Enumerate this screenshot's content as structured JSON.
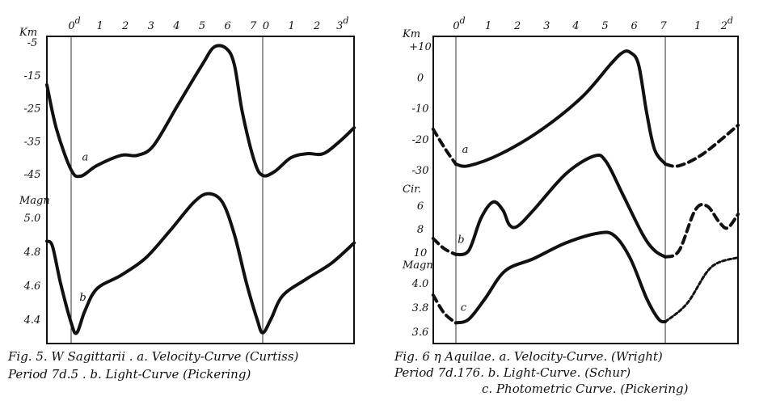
{
  "chart_data": [
    {
      "type": "line",
      "figure": "Fig. 5",
      "title": "W Sagittarii",
      "caption": [
        "Fig. 5. W Sagittarii . a. Velocity-Curve (Curtiss)",
        "Period 7d.5 . b. Light-Curve (Pickering)"
      ],
      "period_days": 7.5,
      "x_ticks": [
        {
          "day": 0,
          "label": "0",
          "sup": "d"
        },
        {
          "day": 1,
          "label": "1"
        },
        {
          "day": 2,
          "label": "2"
        },
        {
          "day": 3,
          "label": "3"
        },
        {
          "day": 4,
          "label": "4"
        },
        {
          "day": 5,
          "label": "5"
        },
        {
          "day": 6,
          "label": "6"
        },
        {
          "day": 7,
          "label": "7"
        },
        {
          "day": 7.5,
          "label": "0"
        },
        {
          "day": 8.5,
          "label": "1"
        },
        {
          "day": 9.5,
          "label": "2"
        },
        {
          "day": 10.5,
          "label": "3",
          "sup": "d"
        }
      ],
      "phase_lines_days": [
        0,
        7.5
      ],
      "axes": [
        {
          "id": "velocity",
          "label": "Km",
          "ticks": [
            {
              "v": -5,
              "label": "-5"
            },
            {
              "v": -15,
              "label": "-15"
            },
            {
              "v": -25,
              "label": "-25"
            },
            {
              "v": -35,
              "label": "-35"
            },
            {
              "v": -45,
              "label": "-45"
            }
          ]
        },
        {
          "id": "magnitude",
          "label": "Magn",
          "ticks": [
            {
              "v": 5.0,
              "label": "5.0"
            },
            {
              "v": 4.8,
              "label": "4.8"
            },
            {
              "v": 4.6,
              "label": "4.6"
            },
            {
              "v": 4.4,
              "label": "4.4"
            }
          ]
        }
      ],
      "series": [
        {
          "name": "a",
          "label": "a",
          "desc": "Velocity-Curve (Curtiss)",
          "axis": "velocity",
          "label_at": [
            0.3,
            -41
          ],
          "segments": [
            {
              "style": "solid",
              "points": [
                [
                  -0.95,
                  -18.0
                ],
                [
                  -0.57,
                  -31.5
                ],
                [
                  0,
                  -43.8
                ],
                [
                  0.38,
                  -45.7
                ],
                [
                  1.01,
                  -42.5
                ],
                [
                  1.96,
                  -39.4
                ],
                [
                  2.59,
                  -39.4
                ],
                [
                  3.23,
                  -36.4
                ],
                [
                  4.18,
                  -24.1
                ],
                [
                  5.13,
                  -11.9
                ],
                [
                  5.6,
                  -6.5
                ],
                [
                  6.08,
                  -7.0
                ],
                [
                  6.39,
                  -11.9
                ],
                [
                  6.71,
                  -26.6
                ],
                [
                  7.18,
                  -41.3
                ],
                [
                  7.5,
                  -45.5
                ],
                [
                  7.97,
                  -44.3
                ],
                [
                  8.61,
                  -40.1
                ],
                [
                  9.24,
                  -38.9
                ],
                [
                  9.87,
                  -38.9
                ],
                [
                  10.51,
                  -35.2
                ],
                [
                  11.08,
                  -31.0
                ]
              ]
            }
          ]
        },
        {
          "name": "b",
          "label": "b",
          "desc": "Light-Curve (Pickering)",
          "axis": "magnitude",
          "label_at": [
            0.2,
            4.51
          ],
          "segments": [
            {
              "style": "solid",
              "points": [
                [
                  -0.95,
                  4.86
                ],
                [
                  -0.73,
                  4.83
                ],
                [
                  -0.41,
                  4.61
                ],
                [
                  0,
                  4.38
                ],
                [
                  0.22,
                  4.32
                ],
                [
                  0.54,
                  4.45
                ],
                [
                  1.01,
                  4.58
                ],
                [
                  1.96,
                  4.66
                ],
                [
                  2.91,
                  4.76
                ],
                [
                  3.86,
                  4.92
                ],
                [
                  4.81,
                  5.09
                ],
                [
                  5.38,
                  5.14
                ],
                [
                  5.92,
                  5.09
                ],
                [
                  6.39,
                  4.9
                ],
                [
                  6.87,
                  4.61
                ],
                [
                  7.28,
                  4.4
                ],
                [
                  7.5,
                  4.32
                ],
                [
                  7.82,
                  4.4
                ],
                [
                  8.29,
                  4.54
                ],
                [
                  9.24,
                  4.64
                ],
                [
                  10.19,
                  4.73
                ],
                [
                  11.08,
                  4.85
                ]
              ]
            }
          ]
        }
      ]
    },
    {
      "type": "line",
      "figure": "Fig. 6",
      "title": "η Aquilae",
      "caption": [
        "Fig. 6 η Aquilae. a. Velocity-Curve. (Wright)",
        "Period 7d.176. b. Light-Curve. (Schur)",
        "c. Photometric Curve. (Pickering)"
      ],
      "period_days": 7.176,
      "x_ticks": [
        {
          "day": 0,
          "label": "0",
          "sup": "d"
        },
        {
          "day": 1,
          "label": "1"
        },
        {
          "day": 2,
          "label": "2"
        },
        {
          "day": 3,
          "label": "3"
        },
        {
          "day": 4,
          "label": "4"
        },
        {
          "day": 5,
          "label": "5"
        },
        {
          "day": 6,
          "label": "6"
        },
        {
          "day": 7,
          "label": "7"
        },
        {
          "day": 8.176,
          "label": "1"
        },
        {
          "day": 9.176,
          "label": "2",
          "sup": "d"
        }
      ],
      "phase_lines_days": [
        0,
        7.176
      ],
      "axes": [
        {
          "id": "velocity",
          "label": "Km",
          "ticks": [
            {
              "v": 10,
              "label": "+10"
            },
            {
              "v": 0,
              "label": "0"
            },
            {
              "v": -10,
              "label": "-10"
            },
            {
              "v": -20,
              "label": "-20"
            },
            {
              "v": -30,
              "label": "-30"
            }
          ]
        },
        {
          "id": "cir",
          "label": "Cir.",
          "ticks": [
            {
              "v": 6,
              "label": "6"
            },
            {
              "v": 8,
              "label": "8"
            },
            {
              "v": 10,
              "label": "10"
            }
          ]
        },
        {
          "id": "magnitude",
          "label": "Magn",
          "ticks": [
            {
              "v": 4.0,
              "label": "4.0"
            },
            {
              "v": 3.8,
              "label": "3.8"
            },
            {
              "v": 3.6,
              "label": "3.6"
            }
          ]
        }
      ],
      "series": [
        {
          "name": "a",
          "label": "a",
          "desc": "Velocity-Curve (Wright)",
          "axis": "velocity",
          "label_at": [
            0.1,
            -24.5
          ],
          "segments": [
            {
              "style": "dashed",
              "points": [
                [
                  -0.78,
                  -16.9
                ],
                [
                  -0.35,
                  -23.5
                ],
                [
                  0,
                  -28.2
                ]
              ]
            },
            {
              "style": "solid",
              "points": [
                [
                  0,
                  -28.2
                ],
                [
                  0.44,
                  -28.7
                ],
                [
                  1.55,
                  -24.8
                ],
                [
                  2.94,
                  -17.0
                ],
                [
                  4.32,
                  -6.5
                ],
                [
                  5.29,
                  4.0
                ],
                [
                  5.71,
                  7.9
                ],
                [
                  5.98,
                  7.9
                ],
                [
                  6.26,
                  4.0
                ],
                [
                  6.54,
                  -11.7
                ],
                [
                  6.81,
                  -23.5
                ],
                [
                  7.18,
                  -28.2
                ]
              ]
            },
            {
              "style": "dashed",
              "points": [
                [
                  7.18,
                  -28.2
                ],
                [
                  7.65,
                  -28.7
                ],
                [
                  8.48,
                  -24.8
                ],
                [
                  9.67,
                  -15.6
                ]
              ]
            }
          ]
        },
        {
          "name": "b",
          "label": "b",
          "desc": "Light-Curve (Schur)",
          "axis": "cir",
          "label_at": [
            -0.05,
            9.2
          ],
          "segments": [
            {
              "style": "dashed",
              "points": [
                [
                  -0.78,
                  8.83
                ],
                [
                  -0.4,
                  9.7
                ],
                [
                  0,
                  10.2
                ]
              ]
            },
            {
              "style": "solid",
              "points": [
                [
                  0,
                  10.2
                ],
                [
                  0.44,
                  9.86
                ],
                [
                  0.86,
                  7.1
                ],
                [
                  1.27,
                  5.72
                ],
                [
                  1.61,
                  6.41
                ],
                [
                  1.83,
                  7.66
                ],
                [
                  2.11,
                  7.79
                ],
                [
                  2.66,
                  6.41
                ],
                [
                  3.77,
                  3.31
                ],
                [
                  4.74,
                  1.79
                ],
                [
                  5.15,
                  2.28
                ],
                [
                  5.71,
                  5.03
                ],
                [
                  6.4,
                  8.48
                ],
                [
                  6.81,
                  9.86
                ],
                [
                  7.18,
                  10.41
                ]
              ]
            },
            {
              "style": "dashed",
              "points": [
                [
                  7.18,
                  10.41
                ],
                [
                  7.65,
                  9.86
                ],
                [
                  8.2,
                  6.41
                ],
                [
                  8.61,
                  6.07
                ],
                [
                  9.03,
                  7.45
                ],
                [
                  9.31,
                  7.93
                ],
                [
                  9.67,
                  6.76
                ]
              ]
            }
          ]
        },
        {
          "name": "c",
          "label": "c",
          "desc": "Photometric Curve (Pickering)",
          "axis": "magnitude",
          "label_at": [
            0.05,
            3.77
          ],
          "segments": [
            {
              "style": "dashed",
              "points": [
                [
                  -0.78,
                  3.9
                ],
                [
                  -0.4,
                  3.75
                ],
                [
                  0,
                  3.67
                ]
              ]
            },
            {
              "style": "solid",
              "points": [
                [
                  0,
                  3.67
                ],
                [
                  0.44,
                  3.7
                ],
                [
                  1.0,
                  3.87
                ],
                [
                  1.69,
                  4.1
                ],
                [
                  2.66,
                  4.2
                ],
                [
                  3.77,
                  4.33
                ],
                [
                  4.88,
                  4.41
                ],
                [
                  5.43,
                  4.39
                ],
                [
                  5.98,
                  4.2
                ],
                [
                  6.54,
                  3.87
                ],
                [
                  6.95,
                  3.7
                ],
                [
                  7.18,
                  3.68
                ]
              ]
            },
            {
              "style": "dotted",
              "points": [
                [
                  7.18,
                  3.68
                ],
                [
                  7.92,
                  3.83
                ],
                [
                  8.75,
                  4.13
                ],
                [
                  9.67,
                  4.21
                ]
              ]
            }
          ]
        }
      ]
    }
  ]
}
